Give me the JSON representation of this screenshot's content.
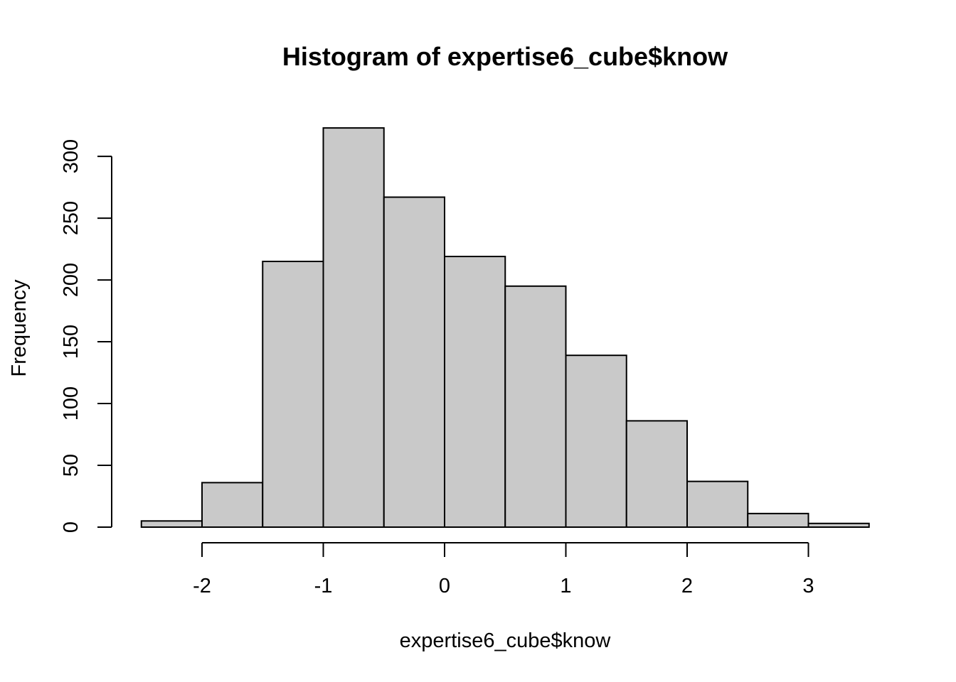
{
  "chart_data": {
    "type": "bar",
    "title": "Histogram of expertise6_cube$know",
    "xlabel": "expertise6_cube$know",
    "ylabel": "Frequency",
    "bins": [
      {
        "start": -2.5,
        "end": -2.0,
        "count": 5
      },
      {
        "start": -2.0,
        "end": -1.5,
        "count": 36
      },
      {
        "start": -1.5,
        "end": -1.0,
        "count": 215
      },
      {
        "start": -1.0,
        "end": -0.5,
        "count": 323
      },
      {
        "start": -0.5,
        "end": 0.0,
        "count": 267
      },
      {
        "start": 0.0,
        "end": 0.5,
        "count": 219
      },
      {
        "start": 0.5,
        "end": 1.0,
        "count": 195
      },
      {
        "start": 1.0,
        "end": 1.5,
        "count": 139
      },
      {
        "start": 1.5,
        "end": 2.0,
        "count": 86
      },
      {
        "start": 2.0,
        "end": 2.5,
        "count": 37
      },
      {
        "start": 2.5,
        "end": 3.0,
        "count": 11
      },
      {
        "start": 3.0,
        "end": 3.5,
        "count": 3
      }
    ],
    "x_ticks": [
      {
        "value": -2,
        "label": "-2"
      },
      {
        "value": -1,
        "label": "-1"
      },
      {
        "value": 0,
        "label": "0"
      },
      {
        "value": 1,
        "label": "1"
      },
      {
        "value": 2,
        "label": "2"
      },
      {
        "value": 3,
        "label": "3"
      }
    ],
    "y_ticks": [
      {
        "value": 0,
        "label": "0"
      },
      {
        "value": 50,
        "label": "50"
      },
      {
        "value": 100,
        "label": "100"
      },
      {
        "value": 150,
        "label": "150"
      },
      {
        "value": 200,
        "label": "200"
      },
      {
        "value": 250,
        "label": "250"
      },
      {
        "value": 300,
        "label": "300"
      }
    ],
    "xlim": [
      -2.5,
      3.5
    ],
    "ylim": [
      0,
      323
    ],
    "grid": false,
    "legend": "none",
    "bar_fill": "#c9c9c9",
    "bar_stroke": "#000000"
  }
}
